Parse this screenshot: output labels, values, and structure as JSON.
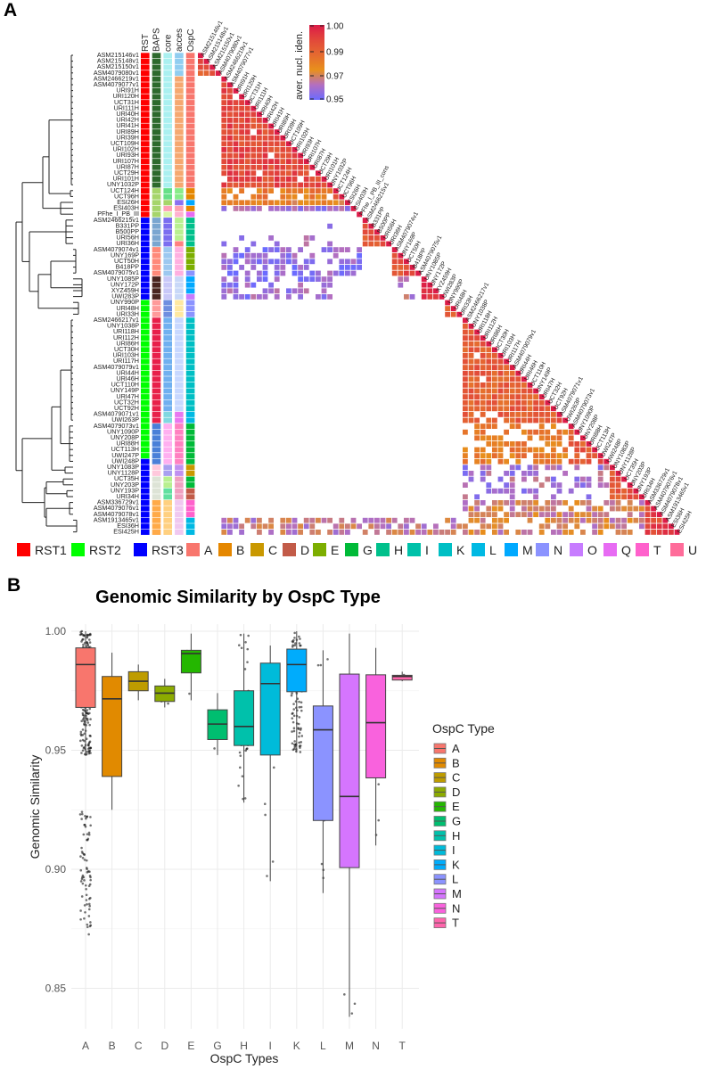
{
  "panel_a": {
    "letter": "A",
    "annotation_headers": [
      "RST",
      "BAPS",
      "core",
      "acces",
      "OspC"
    ],
    "colorbar": {
      "title": "aver. nucl. iden.",
      "ticks": [
        1.0,
        0.99,
        0.97,
        0.95
      ],
      "tick_labels": [
        "1.00",
        "0.99",
        "0.97",
        "0.95"
      ],
      "stops": [
        [
          0.95,
          "#6b6bff"
        ],
        [
          0.96,
          "#b46fc0"
        ],
        [
          0.97,
          "#e8901c"
        ],
        [
          0.98,
          "#e56a30"
        ],
        [
          0.99,
          "#e2483a"
        ],
        [
          1.0,
          "#dc1b48"
        ]
      ]
    },
    "legend": [
      {
        "label": "RST1",
        "color": "#ff0000"
      },
      {
        "label": "RST2",
        "color": "#00ff00"
      },
      {
        "label": "RST3",
        "color": "#0000ff"
      },
      {
        "label": "A",
        "color": "#f8766d"
      },
      {
        "label": "B",
        "color": "#e58700"
      },
      {
        "label": "C",
        "color": "#c99800"
      },
      {
        "label": "D",
        "color": "#c25b48"
      },
      {
        "label": "E",
        "color": "#7cae00"
      },
      {
        "label": "G",
        "color": "#00ba38"
      },
      {
        "label": "H",
        "color": "#00c08b"
      },
      {
        "label": "I",
        "color": "#00c1a9"
      },
      {
        "label": "K",
        "color": "#00bfc4"
      },
      {
        "label": "L",
        "color": "#00b9e3"
      },
      {
        "label": "M",
        "color": "#00a9ff"
      },
      {
        "label": "N",
        "color": "#8b93ff"
      },
      {
        "label": "O",
        "color": "#c77cff"
      },
      {
        "label": "Q",
        "color": "#e76bf3"
      },
      {
        "label": "T",
        "color": "#ff61cc"
      },
      {
        "label": "U",
        "color": "#ff6c9a"
      }
    ]
  },
  "chart_data": [
    {
      "type": "heatmap",
      "title": "",
      "value_label": "aver. nucl. iden.",
      "range": [
        0.95,
        1.0
      ],
      "rows": [
        "ASM215146v1",
        "ASM215148v1",
        "ASM215150v1",
        "ASM4079080v1",
        "ASM2466219v1",
        "ASM4079077v1",
        "URI91H",
        "URI120H",
        "UCT31H",
        "URI111H",
        "URI40H",
        "URI42H",
        "URI41H",
        "URI89H",
        "URI39H",
        "UCT109H",
        "URI102H",
        "URI93H",
        "URI107H",
        "URI87H",
        "UCT29H",
        "URI101H",
        "UNY1032P",
        "UCT124H",
        "UCT96H",
        "ESI26H",
        "ESI403H",
        "PFhe_I_PB_III",
        "ASM2466215v1",
        "B331PP",
        "B500PP",
        "URI56H",
        "URI36H",
        "ASM4079074v1",
        "UNY169P",
        "UCT50H",
        "B418PP",
        "ASM4079075v1",
        "UNY1085P",
        "UNY172P",
        "XYZ459H",
        "UWI283P",
        "UNY990P",
        "URI48H",
        "URI33H",
        "ASM2466217v1",
        "UNY1038P",
        "URI118H",
        "URI112H",
        "URI86H",
        "UCT30H",
        "URI103H",
        "URI117H",
        "ASM4079079v1",
        "URI44H",
        "URI46H",
        "UCT110H",
        "UNY149P",
        "URI47H",
        "UCT32H",
        "UCT92H",
        "ASM4079071v1",
        "UWI263P",
        "ASM4079073v1",
        "UNY1090P",
        "UNY208P",
        "URI88H",
        "UCT113H",
        "UWI247P",
        "UWI248P",
        "UNY1083P",
        "UNY1128P",
        "UCT35H",
        "UNY203P",
        "UNY193P",
        "URI34H",
        "ASM336729v1",
        "ASM4079076v1",
        "ASM4079078v1",
        "ASM1913465v1",
        "ESI36H",
        "ESI425H"
      ],
      "column_label_overrides": {
        "27": "PFhe_I_PB_III_cons"
      },
      "annotations": {
        "RST": [
          [
            28,
            "#ff0000"
          ],
          [
            14,
            "#0000ff"
          ],
          [
            27,
            "#00ff00"
          ],
          [
            13,
            "#0000ff"
          ]
        ],
        "BAPS": [
          [
            23,
            "#2d6a2d"
          ],
          [
            5,
            "#a6d56b"
          ],
          [
            5,
            "#7aa6d0"
          ],
          [
            5,
            "#ff8a7a"
          ],
          [
            4,
            "#4a2520"
          ],
          [
            3,
            "#ff9a9a"
          ],
          [
            18,
            "#e8204a"
          ],
          [
            7,
            "#4a7fd8"
          ],
          [
            2,
            "#ffc8dc"
          ],
          [
            4,
            "#dde3d6"
          ],
          [
            6,
            "#ffaa48"
          ]
        ],
        "core": [
          [
            23,
            "#aaf0f0"
          ],
          [
            2,
            "#66e088"
          ],
          [
            1,
            "#a6d66a"
          ],
          [
            1,
            "#ff9fb8"
          ],
          [
            1,
            "#d8f5a8"
          ],
          [
            5,
            "#7b6ef0"
          ],
          [
            5,
            "#9cc8f0"
          ],
          [
            4,
            "#c8c8f8"
          ],
          [
            3,
            "#6f8fe0"
          ],
          [
            16,
            "#70b0f0"
          ],
          [
            2,
            "#80d8e0"
          ],
          [
            7,
            "#ffb0f0"
          ],
          [
            2,
            "#a8a0f0"
          ],
          [
            2,
            "#b8f090"
          ],
          [
            2,
            "#60e0a0"
          ],
          [
            6,
            "#ffd080"
          ]
        ],
        "acces": [
          [
            4,
            "#90cdf0"
          ],
          [
            19,
            "#f5a870"
          ],
          [
            2,
            "#88ec88"
          ],
          [
            1,
            "#8a70f0"
          ],
          [
            1,
            "#ffa0b0"
          ],
          [
            1,
            "#ffb0d0"
          ],
          [
            4,
            "#b8f090"
          ],
          [
            1,
            "#ff8080"
          ],
          [
            5,
            "#ffb0e0"
          ],
          [
            4,
            "#c8d8f8"
          ],
          [
            3,
            "#ffe8a0"
          ],
          [
            16,
            "#c8d8ff"
          ],
          [
            2,
            "#e878f0"
          ],
          [
            7,
            "#ff80c0"
          ],
          [
            2,
            "#c090f0"
          ],
          [
            4,
            "#f0a0c0"
          ],
          [
            6,
            "#f0c8f0"
          ]
        ],
        "OspC": [
          [
            23,
            "A"
          ],
          [
            2,
            "B"
          ],
          [
            1,
            "M"
          ],
          [
            1,
            "B"
          ],
          [
            1,
            "Q"
          ],
          [
            5,
            "H"
          ],
          [
            4,
            "E"
          ],
          [
            1,
            "N"
          ],
          [
            3,
            "M"
          ],
          [
            1,
            "O"
          ],
          [
            3,
            "N"
          ],
          [
            16,
            "K"
          ],
          [
            2,
            "L"
          ],
          [
            7,
            "G"
          ],
          [
            2,
            "C"
          ],
          [
            2,
            "G"
          ],
          [
            2,
            "D"
          ],
          [
            3,
            "T"
          ],
          [
            3,
            "L"
          ]
        ]
      },
      "blocks": [
        {
          "rows": [
            0,
            3
          ],
          "cols": [
            0,
            3
          ],
          "value": 0.985,
          "density": 1.0
        },
        {
          "rows": [
            4,
            22
          ],
          "cols": [
            4,
            22
          ],
          "value": 0.99,
          "density": 0.97
        },
        {
          "rows": [
            23,
            24
          ],
          "cols": [
            4,
            22
          ],
          "value": 0.976,
          "density": 0.8
        },
        {
          "rows": [
            23,
            24
          ],
          "cols": [
            23,
            24
          ],
          "value": 0.99,
          "density": 1.0
        },
        {
          "rows": [
            25,
            25
          ],
          "cols": [
            4,
            24
          ],
          "value": 0.972,
          "density": 1.0
        },
        {
          "rows": [
            26,
            26
          ],
          "cols": [
            4,
            25
          ],
          "value": 0.957,
          "density": 0.9
        },
        {
          "rows": [
            28,
            32
          ],
          "cols": [
            28,
            32
          ],
          "value": 0.985,
          "density": 1.0
        },
        {
          "rows": [
            29,
            29
          ],
          "cols": [
            22,
            22
          ],
          "value": 0.952,
          "density": 1.0
        },
        {
          "rows": [
            31,
            32
          ],
          "cols": [
            4,
            22
          ],
          "value": 0.956,
          "density": 0.45
        },
        {
          "rows": [
            33,
            37
          ],
          "cols": [
            4,
            27
          ],
          "value": 0.955,
          "density": 0.55
        },
        {
          "rows": [
            33,
            37
          ],
          "cols": [
            33,
            37
          ],
          "value": 0.988,
          "density": 1.0
        },
        {
          "rows": [
            38,
            41
          ],
          "cols": [
            4,
            22
          ],
          "value": 0.956,
          "density": 0.6
        },
        {
          "rows": [
            38,
            41
          ],
          "cols": [
            33,
            37
          ],
          "value": 0.96,
          "density": 0.4
        },
        {
          "rows": [
            38,
            41
          ],
          "cols": [
            38,
            41
          ],
          "value": 0.995,
          "density": 1.0
        },
        {
          "rows": [
            42,
            44
          ],
          "cols": [
            42,
            44
          ],
          "value": 0.982,
          "density": 1.0
        },
        {
          "rows": [
            45,
            62
          ],
          "cols": [
            45,
            62
          ],
          "value": 0.984,
          "density": 0.95
        },
        {
          "rows": [
            63,
            69
          ],
          "cols": [
            45,
            62
          ],
          "value": 0.975,
          "density": 0.65
        },
        {
          "rows": [
            63,
            69
          ],
          "cols": [
            63,
            69
          ],
          "value": 0.985,
          "density": 0.8
        },
        {
          "rows": [
            70,
            75
          ],
          "cols": [
            45,
            69
          ],
          "value": 0.958,
          "density": 0.45
        },
        {
          "rows": [
            70,
            75
          ],
          "cols": [
            70,
            75
          ],
          "value": 0.985,
          "density": 0.9
        },
        {
          "rows": [
            76,
            81
          ],
          "cols": [
            45,
            75
          ],
          "value": 0.965,
          "density": 0.7
        },
        {
          "rows": [
            79,
            81
          ],
          "cols": [
            4,
            44
          ],
          "value": 0.962,
          "density": 0.75
        },
        {
          "rows": [
            76,
            81
          ],
          "cols": [
            76,
            81
          ],
          "value": 0.99,
          "density": 1.0
        }
      ]
    },
    {
      "type": "box",
      "letter": "B",
      "title": "Genomic Similarity by OspC Type",
      "xlabel": "OspC Types",
      "ylabel": "Genomic Similarity",
      "ylim": [
        0.833,
        1.003
      ],
      "yticks": [
        0.85,
        0.9,
        0.95,
        1.0
      ],
      "ytick_labels": [
        "0.85",
        "0.90",
        "0.95",
        "1.00"
      ],
      "grid": true,
      "legend": {
        "title": "OspC Type",
        "placement": "right"
      },
      "categories": [
        "A",
        "B",
        "C",
        "D",
        "E",
        "G",
        "H",
        "I",
        "K",
        "L",
        "M",
        "N",
        "T"
      ],
      "colors": [
        "#f8766d",
        "#e18a00",
        "#be9c00",
        "#8cab00",
        "#24b700",
        "#00be70",
        "#00c1ab",
        "#00bbda",
        "#00acfc",
        "#8b93ff",
        "#d575fe",
        "#f962dd",
        "#ff65ac"
      ],
      "stats": [
        {
          "min": 0.948,
          "q1": 0.968,
          "median": 0.986,
          "q3": 0.993,
          "max": 1.0,
          "n": 400,
          "low_points": [
            0.87,
            0.925,
            70
          ]
        },
        {
          "min": 0.925,
          "q1": 0.939,
          "median": 0.9716,
          "q3": 0.981,
          "max": 0.991,
          "n": 6
        },
        {
          "min": 0.971,
          "q1": 0.975,
          "median": 0.979,
          "q3": 0.983,
          "max": 0.986,
          "n": 4
        },
        {
          "min": 0.968,
          "q1": 0.9705,
          "median": 0.974,
          "q3": 0.977,
          "max": 0.98,
          "n": 4
        },
        {
          "min": 0.971,
          "q1": 0.9825,
          "median": 0.9906,
          "q3": 0.992,
          "max": 0.999,
          "n": 10
        },
        {
          "min": 0.948,
          "q1": 0.9545,
          "median": 0.961,
          "q3": 0.967,
          "max": 0.974,
          "n": 3
        },
        {
          "min": 0.928,
          "q1": 0.952,
          "median": 0.96,
          "q3": 0.975,
          "max": 0.999,
          "n": 45
        },
        {
          "min": 0.895,
          "q1": 0.948,
          "median": 0.978,
          "q3": 0.9866,
          "max": 0.994,
          "n": 20
        },
        {
          "min": 0.949,
          "q1": 0.9746,
          "median": 0.986,
          "q3": 0.9925,
          "max": 1.0,
          "n": 250
        },
        {
          "min": 0.89,
          "q1": 0.9205,
          "median": 0.9586,
          "q3": 0.9686,
          "max": 0.992,
          "n": 20
        },
        {
          "min": 0.838,
          "q1": 0.9007,
          "median": 0.9306,
          "q3": 0.982,
          "max": 0.999,
          "n": 12
        },
        {
          "min": 0.91,
          "q1": 0.9384,
          "median": 0.9616,
          "q3": 0.9817,
          "max": 0.993,
          "n": 12
        },
        {
          "min": 0.979,
          "q1": 0.9795,
          "median": 0.981,
          "q3": 0.9815,
          "max": 0.983,
          "n": 4
        }
      ]
    }
  ]
}
